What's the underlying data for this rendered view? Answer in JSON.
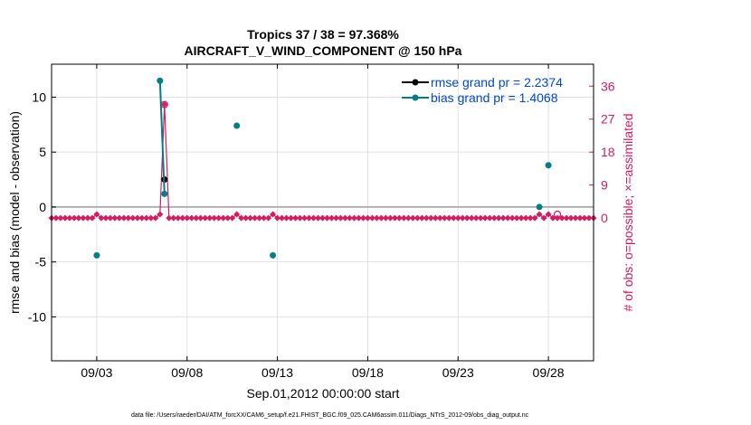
{
  "colors": {
    "rmse": "#000000",
    "bias": "#008080",
    "obs": "#d81b60",
    "legend_text": "#0047d6",
    "zero_line": "#b0b0b0",
    "grid": "#e0e0e0"
  },
  "chart_data": {
    "type": "line",
    "title_line1": "Tropics 37 / 38 = 97.368%",
    "title_line2": "AIRCRAFT_V_WIND_COMPONENT @ 150 hPa",
    "xlabel": "Sep.01,2012 00:00:00 start",
    "ylabel": "rmse and bias (model - observation)",
    "y2label": "# of obs: o=possible; ×=assimilated",
    "footer": "data file: /Users/raeder/DAI/ATM_forcXX/CAM6_setup/f.e21.FHIST_BGC.f09_025.CAM6assim.011/Diags_NTrS_2012-09/obs_diag_output.nc",
    "x_range": [
      0.5,
      30.5
    ],
    "ylim": [
      -14,
      13
    ],
    "y2lim": [
      -39,
      42
    ],
    "x_ticks": [
      {
        "x": 3,
        "label": "09/03"
      },
      {
        "x": 8,
        "label": "09/08"
      },
      {
        "x": 13,
        "label": "09/13"
      },
      {
        "x": 18,
        "label": "09/18"
      },
      {
        "x": 23,
        "label": "09/23"
      },
      {
        "x": 28,
        "label": "09/28"
      }
    ],
    "y_ticks": [
      {
        "v": 10,
        "label": "10"
      },
      {
        "v": 5,
        "label": "5"
      },
      {
        "v": 0,
        "label": "0"
      },
      {
        "v": -5,
        "label": "-5"
      },
      {
        "v": -10,
        "label": "-10"
      }
    ],
    "y2_ticks": [
      {
        "v": 36,
        "label": "36"
      },
      {
        "v": 27,
        "label": "27"
      },
      {
        "v": 18,
        "label": "18"
      },
      {
        "v": 9,
        "label": "9"
      },
      {
        "v": 0,
        "label": "0"
      }
    ],
    "legend_position": "top-right",
    "series": [
      {
        "name": "rmse grand pr = 2.2374",
        "key": "rmse",
        "segments": [
          [
            [
              6.75,
              2.5
            ]
          ]
        ]
      },
      {
        "name": "bias grand pr = 1.4068",
        "key": "bias",
        "segments": [
          [
            [
              3.0,
              -4.4
            ]
          ],
          [
            [
              6.5,
              11.5
            ],
            [
              6.75,
              1.2
            ]
          ],
          [
            [
              10.75,
              7.4
            ]
          ],
          [
            [
              12.75,
              -4.4
            ]
          ],
          [
            [
              27.5,
              0.0
            ]
          ],
          [
            [
              28.0,
              3.8
            ]
          ]
        ]
      }
    ],
    "obs_assimilated": [
      [
        6.75,
        31
      ],
      [
        3.0,
        1
      ],
      [
        6.5,
        1
      ],
      [
        10.75,
        1
      ],
      [
        12.75,
        1
      ],
      [
        27.5,
        1
      ],
      [
        28.0,
        1
      ]
    ],
    "obs_possible": [
      [
        6.75,
        31
      ],
      [
        28.5,
        1
      ]
    ]
  }
}
